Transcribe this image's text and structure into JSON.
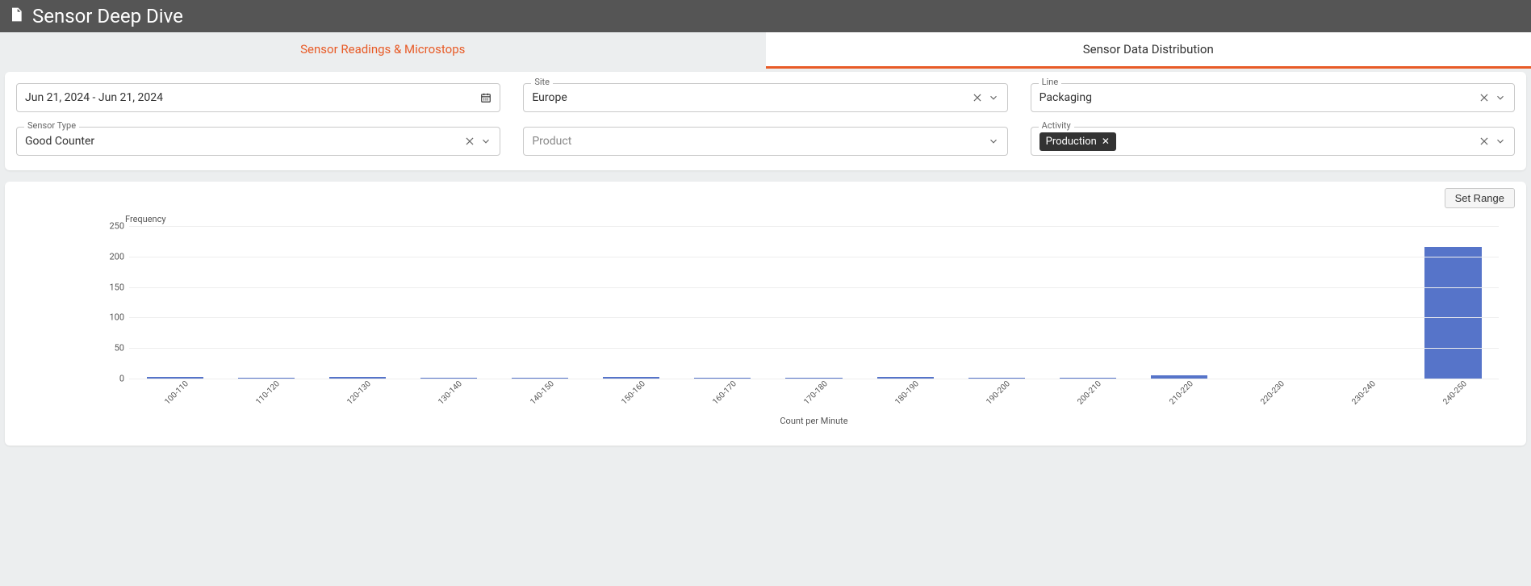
{
  "header": {
    "title": "Sensor Deep Dive"
  },
  "tabs": {
    "left": "Sensor Readings & Microstops",
    "right": "Sensor Data Distribution",
    "active_index": 0
  },
  "filters": {
    "date_range": "Jun 21, 2024 - Jun 21, 2024",
    "site": {
      "label": "Site",
      "value": "Europe"
    },
    "line": {
      "label": "Line",
      "value": "Packaging"
    },
    "sensor_type": {
      "label": "Sensor Type",
      "value": "Good Counter"
    },
    "product": {
      "label": "",
      "placeholder": "Product"
    },
    "activity": {
      "label": "Activity",
      "chips": [
        "Production"
      ]
    }
  },
  "buttons": {
    "set_range": "Set Range"
  },
  "chart": {
    "type": "bar",
    "y_axis_title": "Frequency",
    "x_axis_title": "Count per Minute",
    "ylim": [
      0,
      250
    ],
    "ytick_step": 50,
    "y_ticks": [
      0,
      50,
      100,
      150,
      200,
      250
    ],
    "categories": [
      "100-110",
      "110-120",
      "120-130",
      "130-140",
      "140-150",
      "150-160",
      "160-170",
      "170-180",
      "180-190",
      "190-200",
      "200-210",
      "210-220",
      "220-230",
      "230-240",
      "240-250"
    ],
    "values": [
      3,
      1,
      3,
      1,
      2,
      3,
      1,
      2,
      3,
      2,
      1,
      5,
      0,
      0,
      215
    ],
    "bar_color": "#5674c9",
    "grid_color": "#eeeeee",
    "axis_color": "#cccccc",
    "background_color": "#ffffff",
    "label_fontsize": 11,
    "tick_fontsize": 10
  }
}
